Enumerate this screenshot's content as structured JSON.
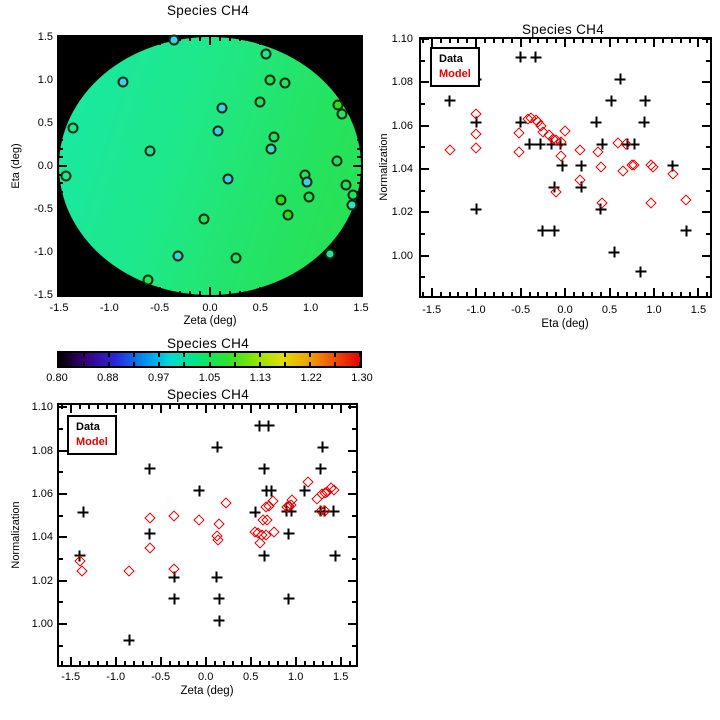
{
  "figure": {
    "background": "#ffffff"
  },
  "colors": {
    "data_marker": "#000000",
    "model_marker": "#E00000",
    "map_background": "#000000",
    "map_field_gradient_start": "#18E9A6",
    "map_field_gradient_end": "#2AE14E",
    "marker_outline": "#0E2B10"
  },
  "chart_data": [
    {
      "id": "map",
      "type": "scatter",
      "title": "Species CH4",
      "xlabel": "Zeta (deg)",
      "ylabel": "Eta (deg)",
      "xlim": [
        -1.5,
        1.5
      ],
      "ylim": [
        -1.5,
        1.5
      ],
      "xticks": [
        -1.5,
        -1.0,
        -0.5,
        0.0,
        0.5,
        1.0,
        1.5
      ],
      "xtick_labels": [
        "-1.5",
        "-1.0",
        "-0.5",
        "0.0",
        "0.5",
        "1.0",
        "1.5"
      ],
      "yticks": [
        -1.5,
        -1.0,
        -0.5,
        0.0,
        0.5,
        1.0,
        1.5
      ],
      "ytick_labels": [
        "-1.5",
        "-1.0",
        "-0.5",
        "0.0",
        "0.5",
        "1.0",
        "1.5"
      ],
      "xminor": 0.1,
      "yminor": 0.1,
      "field": "circular field of view, radius 1.5 deg, value gradient teal to green",
      "points": [
        {
          "zeta": -0.36,
          "eta": 1.47,
          "fill": "#3CCFF0"
        },
        {
          "zeta": 0.56,
          "eta": 1.3,
          "fill": "#22E596"
        },
        {
          "zeta": -0.86,
          "eta": 0.98,
          "fill": "#3CCFF0"
        },
        {
          "zeta": 0.6,
          "eta": 1.0,
          "fill": "#27E25E"
        },
        {
          "zeta": 0.74,
          "eta": 0.97,
          "fill": "#27E25E"
        },
        {
          "zeta": 0.5,
          "eta": 0.74,
          "fill": "#27E25E"
        },
        {
          "zeta": 0.12,
          "eta": 0.68,
          "fill": "#3CCFF0"
        },
        {
          "zeta": 1.27,
          "eta": 0.71,
          "fill": "#2FDE14"
        },
        {
          "zeta": 1.31,
          "eta": 0.6,
          "fill": "#27E25E"
        },
        {
          "zeta": -1.36,
          "eta": 0.44,
          "fill": "#22E596"
        },
        {
          "zeta": 0.08,
          "eta": 0.41,
          "fill": "#3CCFF0"
        },
        {
          "zeta": 0.64,
          "eta": 0.34,
          "fill": "#27E25E"
        },
        {
          "zeta": -0.6,
          "eta": 0.18,
          "fill": "#22E596"
        },
        {
          "zeta": 0.61,
          "eta": 0.2,
          "fill": "#38DCC8"
        },
        {
          "zeta": 1.26,
          "eta": 0.06,
          "fill": "#27E25E"
        },
        {
          "zeta": -1.43,
          "eta": -0.12,
          "fill": "#22E596"
        },
        {
          "zeta": 0.18,
          "eta": -0.15,
          "fill": "#3CCFF0"
        },
        {
          "zeta": 0.94,
          "eta": -0.1,
          "fill": "#27E25E"
        },
        {
          "zeta": 0.96,
          "eta": -0.19,
          "fill": "#3CCFF0"
        },
        {
          "zeta": 0.98,
          "eta": -0.36,
          "fill": "#27E25E"
        },
        {
          "zeta": 1.35,
          "eta": -0.22,
          "fill": "#27E25E"
        },
        {
          "zeta": 1.42,
          "eta": -0.34,
          "fill": "#27E25E"
        },
        {
          "zeta": 1.41,
          "eta": -0.45,
          "fill": "#38DCC8"
        },
        {
          "zeta": 0.7,
          "eta": -0.4,
          "fill": "#2FDE14"
        },
        {
          "zeta": 0.77,
          "eta": -0.57,
          "fill": "#2FDE14"
        },
        {
          "zeta": -0.06,
          "eta": -0.61,
          "fill": "#27E25E"
        },
        {
          "zeta": -0.32,
          "eta": -1.05,
          "fill": "#3AD4D8"
        },
        {
          "zeta": 0.26,
          "eta": -1.07,
          "fill": "#27E25E"
        },
        {
          "zeta": 1.19,
          "eta": -1.02,
          "fill": "#2AE090"
        },
        {
          "zeta": -0.62,
          "eta": -1.33,
          "fill": "#27E25E"
        }
      ]
    },
    {
      "id": "eta_scatter",
      "type": "scatter",
      "title": "Species CH4",
      "xlabel": "Eta (deg)",
      "ylabel": "Normalization",
      "xlim": [
        -1.62,
        1.63
      ],
      "ylim": [
        0.9814,
        1.1
      ],
      "xticks": [
        -1.5,
        -1.0,
        -0.5,
        0.0,
        0.5,
        1.0,
        1.5
      ],
      "xtick_labels": [
        "-1.5",
        "-1.0",
        "-0.5",
        "0.0",
        "0.5",
        "1.0",
        "1.5"
      ],
      "yticks": [
        1.0,
        1.02,
        1.04,
        1.06,
        1.08,
        1.1
      ],
      "ytick_labels": [
        "1.00",
        "1.02",
        "1.04",
        "1.06",
        "1.08",
        "1.10"
      ],
      "xminor": 0.1,
      "yminor": 0.01,
      "legend": [
        "Data",
        "Model"
      ],
      "series": [
        {
          "name": "Data",
          "marker": "plus",
          "color": "#000000",
          "points": [
            [
              -1.3,
              1.0715
            ],
            [
              -1.0,
              1.0815
            ],
            [
              -1.0,
              1.0615
            ],
            [
              -1.0,
              1.0215
            ],
            [
              -0.5,
              1.0915
            ],
            [
              -0.5,
              1.0615
            ],
            [
              -0.33,
              1.0915
            ],
            [
              -0.4,
              1.0515
            ],
            [
              -0.28,
              1.0515
            ],
            [
              -0.15,
              1.0515
            ],
            [
              -0.05,
              1.0515
            ],
            [
              -0.12,
              1.0315
            ],
            [
              -0.25,
              1.0115
            ],
            [
              -0.12,
              1.0115
            ],
            [
              -0.03,
              1.0415
            ],
            [
              0.18,
              1.0415
            ],
            [
              0.18,
              1.0315
            ],
            [
              0.35,
              1.0615
            ],
            [
              0.42,
              1.0515
            ],
            [
              0.4,
              1.0215
            ],
            [
              0.52,
              1.0715
            ],
            [
              0.62,
              1.0815
            ],
            [
              0.55,
              1.0015
            ],
            [
              0.7,
              1.0515
            ],
            [
              0.78,
              1.0515
            ],
            [
              0.9,
              1.0715
            ],
            [
              0.89,
              1.0615
            ],
            [
              0.85,
              0.9925
            ],
            [
              1.21,
              1.0415
            ],
            [
              1.36,
              1.0115
            ]
          ]
        },
        {
          "name": "Model",
          "marker": "diamond",
          "color": "#E00000",
          "points": [
            [
              -1.3,
              1.049
            ],
            [
              -1.0,
              1.0655
            ],
            [
              -1.0,
              1.056
            ],
            [
              -1.0,
              1.0495
            ],
            [
              -0.52,
              1.0565
            ],
            [
              -0.52,
              1.048
            ],
            [
              -0.42,
              1.063
            ],
            [
              -0.38,
              1.0635
            ],
            [
              -0.33,
              1.0625
            ],
            [
              -0.3,
              1.0615
            ],
            [
              -0.27,
              1.06
            ],
            [
              -0.25,
              1.057
            ],
            [
              -0.18,
              1.0555
            ],
            [
              -0.14,
              1.054
            ],
            [
              -0.1,
              1.0535
            ],
            [
              -0.05,
              1.0525
            ],
            [
              0.0,
              1.0575
            ],
            [
              -0.05,
              1.046
            ],
            [
              -0.1,
              1.0295
            ],
            [
              0.17,
              1.049
            ],
            [
              0.17,
              1.035
            ],
            [
              0.37,
              1.048
            ],
            [
              0.4,
              1.041
            ],
            [
              0.42,
              1.0245
            ],
            [
              0.6,
              1.052
            ],
            [
              0.65,
              1.039
            ],
            [
              0.68,
              1.0515
            ],
            [
              0.75,
              1.042
            ],
            [
              0.78,
              1.042
            ],
            [
              0.97,
              1.042
            ],
            [
              0.99,
              1.041
            ],
            [
              0.97,
              1.0245
            ],
            [
              1.21,
              1.0375
            ],
            [
              1.36,
              1.0255
            ]
          ]
        }
      ]
    },
    {
      "id": "colorbar",
      "type": "colorbar",
      "title": "Species CH4",
      "tick_values": [
        0.8,
        0.88,
        0.97,
        1.05,
        1.13,
        1.22,
        1.3
      ],
      "tick_labels": [
        "0.80",
        "0.88",
        "0.97",
        "1.05",
        "1.13",
        "1.22",
        "1.30"
      ],
      "gradient": [
        "#000000",
        "#38007E",
        "#2A28DC",
        "#0096F0",
        "#00DCD2",
        "#00E87E",
        "#2CE22E",
        "#96E400",
        "#DEDE00",
        "#F0A200",
        "#F05400",
        "#E80000"
      ]
    },
    {
      "id": "zeta_scatter",
      "type": "scatter",
      "title": "Species CH4",
      "xlabel": "Zeta (deg)",
      "ylabel": "Normalization",
      "xlim": [
        -1.63,
        1.67
      ],
      "ylim": [
        0.981,
        1.101
      ],
      "xticks": [
        -1.5,
        -1.0,
        -0.5,
        0.0,
        0.5,
        1.0,
        1.5
      ],
      "xtick_labels": [
        "-1.5",
        "-1.0",
        "-0.5",
        "0.0",
        "0.5",
        "1.0",
        "1.5"
      ],
      "yticks": [
        1.0,
        1.02,
        1.04,
        1.06,
        1.08,
        1.1
      ],
      "ytick_labels": [
        "1.00",
        "1.02",
        "1.04",
        "1.06",
        "1.08",
        "1.10"
      ],
      "xminor": 0.1,
      "yminor": 0.01,
      "legend": [
        "Data",
        "Model"
      ],
      "series": [
        {
          "name": "Data",
          "marker": "plus",
          "color": "#000000",
          "points": [
            [
              -1.4,
              1.0315
            ],
            [
              -1.36,
              1.0515
            ],
            [
              -0.85,
              0.9925
            ],
            [
              -0.62,
              1.0715
            ],
            [
              -0.62,
              1.0415
            ],
            [
              -0.35,
              1.0215
            ],
            [
              -0.35,
              1.0115
            ],
            [
              -0.07,
              1.0615
            ],
            [
              0.13,
              1.0815
            ],
            [
              0.12,
              1.0215
            ],
            [
              0.15,
              1.0115
            ],
            [
              0.15,
              1.0015
            ],
            [
              0.55,
              1.0515
            ],
            [
              0.6,
              1.0915
            ],
            [
              0.7,
              1.0915
            ],
            [
              0.65,
              1.0715
            ],
            [
              0.68,
              1.0615
            ],
            [
              0.73,
              1.0615
            ],
            [
              0.65,
              1.0315
            ],
            [
              0.9,
              1.052
            ],
            [
              0.95,
              1.052
            ],
            [
              0.92,
              1.0415
            ],
            [
              0.92,
              1.0115
            ],
            [
              1.1,
              1.0615
            ],
            [
              1.3,
              1.0815
            ],
            [
              1.28,
              1.0715
            ],
            [
              1.27,
              1.052
            ],
            [
              1.32,
              1.052
            ],
            [
              1.42,
              1.052
            ],
            [
              1.44,
              1.0315
            ]
          ]
        },
        {
          "name": "Model",
          "marker": "diamond",
          "color": "#E00000",
          "points": [
            [
              -1.4,
              1.029
            ],
            [
              -1.37,
              1.0245
            ],
            [
              -0.85,
              1.0245
            ],
            [
              -0.62,
              1.049
            ],
            [
              -0.62,
              1.035
            ],
            [
              -0.35,
              1.05
            ],
            [
              -0.35,
              1.0255
            ],
            [
              -0.07,
              1.048
            ],
            [
              0.15,
              1.046
            ],
            [
              0.12,
              1.0405
            ],
            [
              0.14,
              1.0385
            ],
            [
              0.22,
              1.056
            ],
            [
              0.55,
              1.0425
            ],
            [
              0.58,
              1.042
            ],
            [
              0.6,
              1.0375
            ],
            [
              0.63,
              1.041
            ],
            [
              0.67,
              1.041
            ],
            [
              0.64,
              1.048
            ],
            [
              0.68,
              1.048
            ],
            [
              0.67,
              1.054
            ],
            [
              0.7,
              1.0545
            ],
            [
              0.75,
              1.0565
            ],
            [
              0.76,
              1.0425
            ],
            [
              0.9,
              1.054
            ],
            [
              0.93,
              1.0545
            ],
            [
              0.95,
              1.055
            ],
            [
              0.96,
              1.057
            ],
            [
              1.14,
              1.0655
            ],
            [
              1.24,
              1.0575
            ],
            [
              1.28,
              1.052
            ],
            [
              1.33,
              1.052
            ],
            [
              1.29,
              1.06
            ],
            [
              1.32,
              1.0605
            ],
            [
              1.35,
              1.061
            ],
            [
              1.39,
              1.0625
            ],
            [
              1.43,
              1.062
            ]
          ]
        }
      ]
    }
  ]
}
